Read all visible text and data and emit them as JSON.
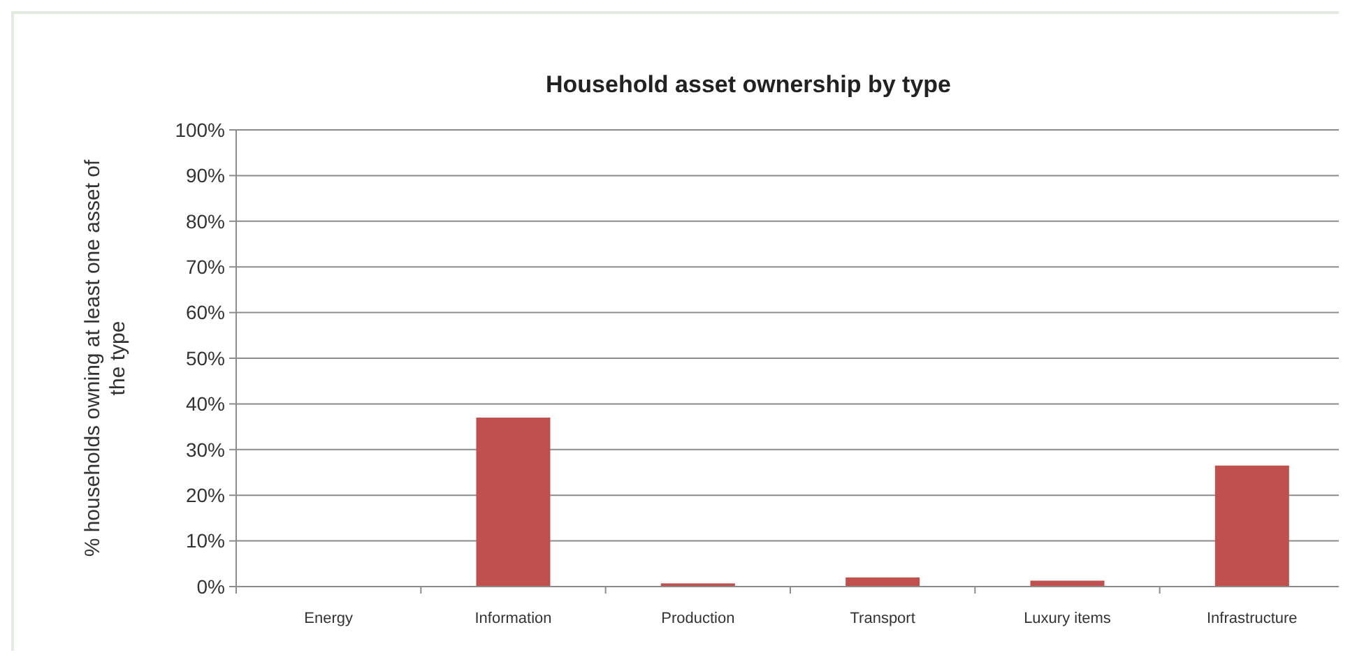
{
  "chart_data": {
    "type": "bar",
    "title": "Household asset ownership by type",
    "ylabel": "% households owning at least one asset of the type",
    "categories": [
      "Energy",
      "Information",
      "Production",
      "Transport",
      "Luxury items",
      "Infrastructure"
    ],
    "values": [
      0,
      37,
      0.7,
      2,
      1.3,
      26.5
    ],
    "color": "#c0504d",
    "ylim": [
      0,
      100
    ],
    "yticks": [
      {
        "value": 0,
        "label": "0%"
      },
      {
        "value": 10,
        "label": "10%"
      },
      {
        "value": 20,
        "label": "20%"
      },
      {
        "value": 30,
        "label": "30%"
      },
      {
        "value": 40,
        "label": "40%"
      },
      {
        "value": 50,
        "label": "50%"
      },
      {
        "value": 60,
        "label": "60%"
      },
      {
        "value": 70,
        "label": "70%"
      },
      {
        "value": 80,
        "label": "80%"
      },
      {
        "value": 90,
        "label": "90%"
      },
      {
        "value": 100,
        "label": "100%"
      }
    ],
    "grid": "y"
  }
}
